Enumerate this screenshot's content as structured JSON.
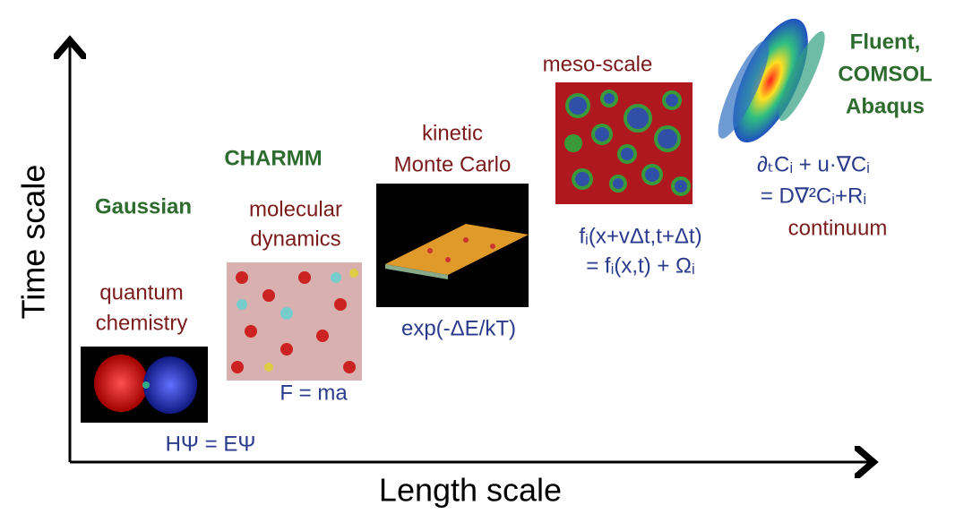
{
  "axes": {
    "y_label": "Time scale",
    "x_label": "Length scale"
  },
  "methods": [
    {
      "software": "Gaussian",
      "level": [
        "quantum",
        "chemistry"
      ],
      "equation": [
        "HΨ = EΨ"
      ]
    },
    {
      "software": "CHARMM",
      "level": [
        "molecular",
        "dynamics"
      ],
      "equation": [
        "F = ma"
      ]
    },
    {
      "level": [
        "kinetic",
        "Monte Carlo"
      ],
      "equation": [
        "exp(-ΔE/kT)"
      ]
    },
    {
      "level": [
        "meso-scale"
      ],
      "equation": [
        "fᵢ(x+vΔt,t+Δt)",
        "= fᵢ(x,t) + Ωᵢ"
      ]
    },
    {
      "software": [
        "Fluent,",
        "COMSOL",
        "Abaqus"
      ],
      "equation": [
        "∂ₜCᵢ + u·∇Cᵢ",
        "= D∇²Cᵢ+Rᵢ"
      ],
      "level": [
        "continuum"
      ]
    }
  ]
}
